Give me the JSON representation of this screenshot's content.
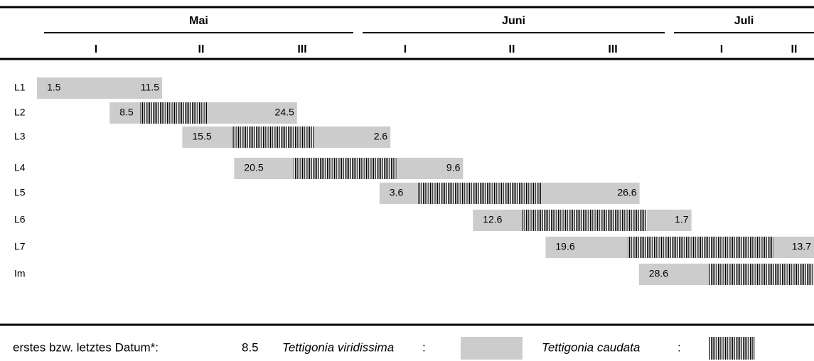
{
  "header": {
    "months": [
      "Mai",
      "Juni",
      "Juli"
    ],
    "decades": [
      "I",
      "II",
      "III",
      "I",
      "II",
      "III",
      "I",
      "II"
    ]
  },
  "rows": [
    {
      "label": "L1",
      "start": "1.5",
      "end": "11.5"
    },
    {
      "label": "L2",
      "start": "8.5",
      "end": "24.5"
    },
    {
      "label": "L3",
      "start": "15.5",
      "end": "2.6"
    },
    {
      "label": "L4",
      "start": "20.5",
      "end": "9.6"
    },
    {
      "label": "L5",
      "start": "3.6",
      "end": "26.6"
    },
    {
      "label": "L6",
      "start": "12.6",
      "end": "1.7"
    },
    {
      "label": "L7",
      "start": "19.6",
      "end": "13.7"
    },
    {
      "label": "Im",
      "start": "28.6"
    }
  ],
  "legend": {
    "date_label": "erstes bzw. letztes Datum*:",
    "date_example": "8.5",
    "species1": "Tettigonia viridissima",
    "species2": "Tettigonia caudata",
    "colon": ":"
  }
}
